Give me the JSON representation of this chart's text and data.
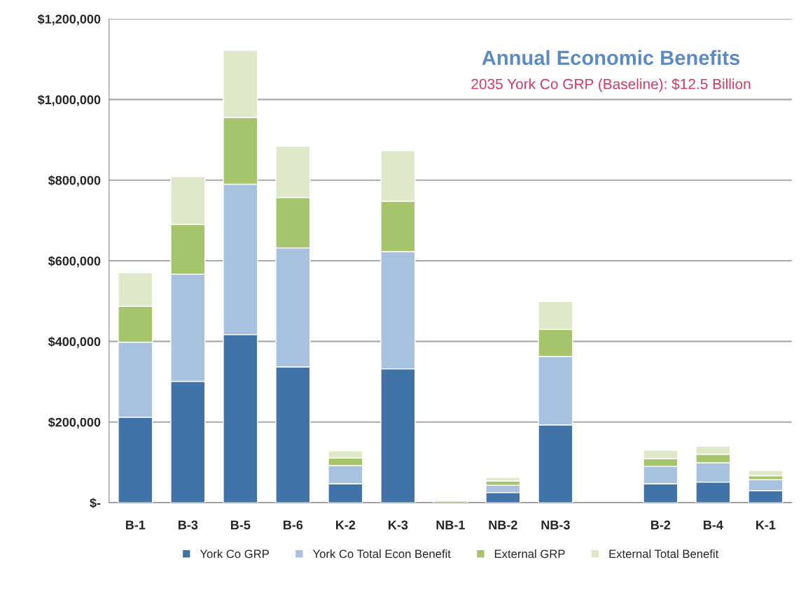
{
  "chart_data": {
    "type": "bar",
    "stacked": true,
    "title": "Annual Economic Benefits",
    "subtitle": "2035 York Co GRP (Baseline): $12.5 Billion",
    "categories": [
      "B-1",
      "B-3",
      "B-5",
      "B-6",
      "K-2",
      "K-3",
      "NB-1",
      "NB-2",
      "NB-3",
      null,
      "B-2",
      "B-4",
      "K-1"
    ],
    "series": [
      {
        "name": "York Co GRP",
        "color": "#4273a8",
        "values": [
          212000,
          301000,
          417000,
          337000,
          47000,
          332000,
          null,
          25000,
          193000,
          null,
          47000,
          51000,
          30000
        ]
      },
      {
        "name": "York Co Total Econ Benefit",
        "color": "#a7c1df",
        "values": [
          186000,
          266000,
          373000,
          295000,
          45000,
          291000,
          null,
          18000,
          170000,
          null,
          43000,
          48000,
          27000
        ]
      },
      {
        "name": "External GRP",
        "color": "#a5c46c",
        "values": [
          89000,
          123000,
          165000,
          125000,
          19000,
          125000,
          4000,
          11000,
          67000,
          null,
          19000,
          21000,
          10000
        ]
      },
      {
        "name": "External Total Benefit",
        "color": "#dfe8c8",
        "values": [
          83000,
          119000,
          167000,
          127000,
          18000,
          125000,
          null,
          9000,
          69000,
          null,
          21000,
          20000,
          13000
        ]
      }
    ],
    "ylim": [
      0,
      1200000
    ],
    "yticks": [
      {
        "value": 0,
        "label": "$-"
      },
      {
        "value": 200000,
        "label": "$200,000"
      },
      {
        "value": 400000,
        "label": "$400,000"
      },
      {
        "value": 600000,
        "label": "$600,000"
      },
      {
        "value": 800000,
        "label": "$800,000"
      },
      {
        "value": 1000000,
        "label": "$1,000,000"
      },
      {
        "value": 1200000,
        "label": "$1,200,000"
      }
    ],
    "grid": "y",
    "legend": "bottom"
  }
}
